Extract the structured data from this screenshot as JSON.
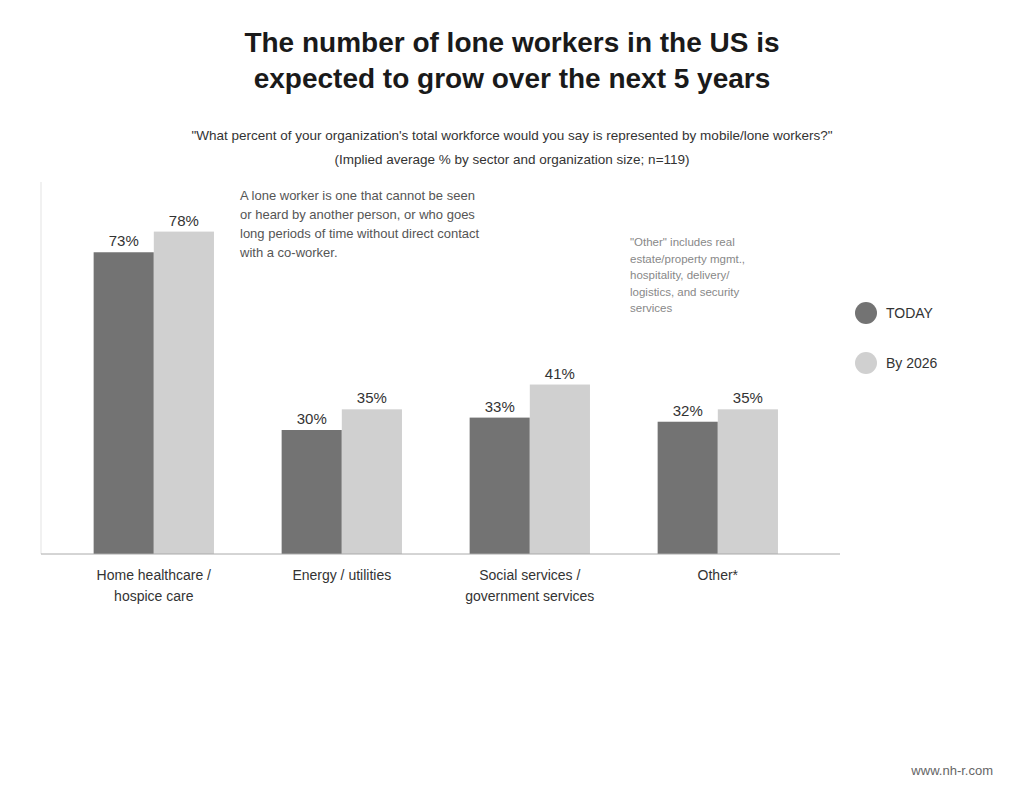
{
  "chart_data": {
    "type": "bar",
    "title": "The number of lone workers in the US is\nexpected to grow over the next 5 years",
    "subtitle": [
      "\"What percent of your organization's total workforce would you say is represented by mobile/lone workers?\"",
      "(Implied average % by sector and organization size; n=119)"
    ],
    "categories": [
      "Home healthcare /\nhospice care",
      "Energy / utilities",
      "Social services /\ngovernment services",
      "Other*"
    ],
    "series": [
      {
        "name": "TODAY",
        "color": "#737373",
        "values": [
          73,
          30,
          33,
          32
        ],
        "value_labels": [
          "73%",
          "30%",
          "33%",
          "32%"
        ]
      },
      {
        "name": "By 2026",
        "color": "#d0d0d0",
        "values": [
          78,
          35,
          41,
          35
        ],
        "value_labels": [
          "78%",
          "35%",
          "41%",
          "35%"
        ]
      }
    ],
    "ylim": [
      0,
      90
    ],
    "data_labels": true,
    "tick_labels": "x",
    "grid": false,
    "legend": "right",
    "annotations": [
      "A lone worker is one that cannot be seen\nor heard by another person, or who goes\nlong periods of time without direct contact\nwith a co-worker.",
      "\"Other\" includes real\nestate/property mgmt.,\nhospitality, delivery/\nlogistics, and security\nservices",
      "www.nh-r.com"
    ]
  }
}
